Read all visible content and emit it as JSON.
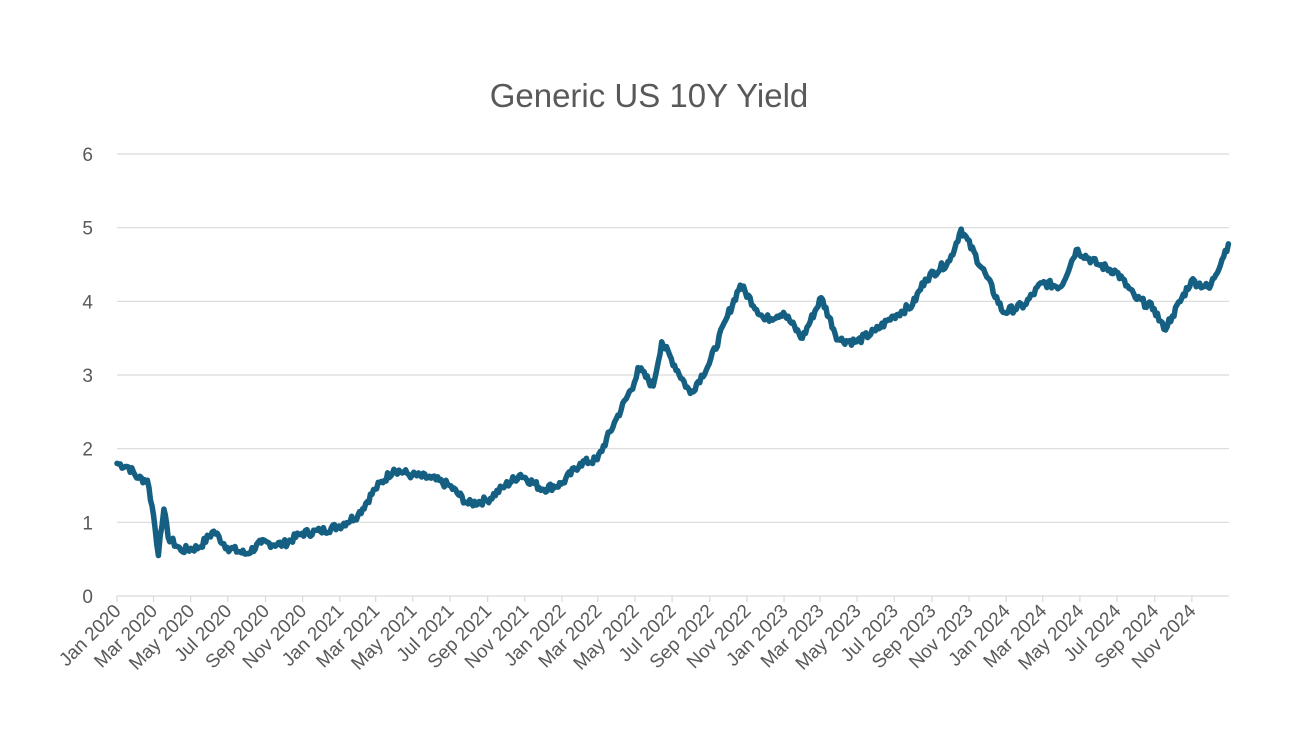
{
  "chart_data": {
    "type": "line",
    "title": "Generic US 10Y Yield",
    "xlabel": "",
    "ylabel": "",
    "ylim": [
      0,
      6
    ],
    "yticks": [
      0,
      1,
      2,
      3,
      4,
      5,
      6
    ],
    "xlim": [
      "2020-01-01",
      "2025-01-01"
    ],
    "x_tick_labels": [
      "Jan 2020",
      "Mar 2020",
      "May 2020",
      "Jul 2020",
      "Sep 2020",
      "Nov 2020",
      "Jan 2021",
      "Mar 2021",
      "May 2021",
      "Jul 2021",
      "Sep 2021",
      "Nov 2021",
      "Jan 2022",
      "Mar 2022",
      "May 2022",
      "Jul 2022",
      "Sep 2022",
      "Nov 2022",
      "Jan 2023",
      "Mar 2023",
      "May 2023",
      "Jul 2023",
      "Sep 2023",
      "Nov 2023",
      "Jan 2024",
      "Mar 2024",
      "May 2024",
      "Jul 2024",
      "Sep 2024",
      "Nov 2024"
    ],
    "grid": true,
    "legend": "none",
    "series": [
      {
        "color": "#156082",
        "x": [
          "2020-01-01",
          "2020-01-20",
          "2020-02-05",
          "2020-02-20",
          "2020-03-01",
          "2020-03-09",
          "2020-03-12",
          "2020-03-18",
          "2020-03-25",
          "2020-04-15",
          "2020-05-15",
          "2020-06-08",
          "2020-06-30",
          "2020-07-31",
          "2020-08-25",
          "2020-09-30",
          "2020-10-31",
          "2020-11-30",
          "2020-12-31",
          "2021-01-31",
          "2021-02-28",
          "2021-03-31",
          "2021-04-30",
          "2021-05-31",
          "2021-06-30",
          "2021-07-31",
          "2021-08-31",
          "2021-09-30",
          "2021-10-25",
          "2021-11-30",
          "2021-12-31",
          "2022-01-31",
          "2022-02-28",
          "2022-03-31",
          "2022-04-30",
          "2022-05-06",
          "2022-05-31",
          "2022-06-14",
          "2022-07-31",
          "2022-08-31",
          "2022-09-30",
          "2022-10-21",
          "2022-11-30",
          "2022-12-31",
          "2023-01-31",
          "2023-03-03",
          "2023-03-31",
          "2023-04-30",
          "2023-05-31",
          "2023-06-30",
          "2023-07-31",
          "2023-08-21",
          "2023-09-30",
          "2023-10-19",
          "2023-11-30",
          "2023-12-27",
          "2024-01-31",
          "2024-02-29",
          "2024-03-31",
          "2024-04-25",
          "2024-05-31",
          "2024-06-30",
          "2024-07-31",
          "2024-08-31",
          "2024-09-16",
          "2024-09-30",
          "2024-10-31",
          "2024-11-30",
          "2024-12-31"
        ],
        "y": [
          1.8,
          1.75,
          1.6,
          1.57,
          1.1,
          0.55,
          0.82,
          1.18,
          0.8,
          0.62,
          0.66,
          0.88,
          0.66,
          0.57,
          0.72,
          0.7,
          0.85,
          0.88,
          0.95,
          1.1,
          1.45,
          1.72,
          1.64,
          1.6,
          1.5,
          1.25,
          1.3,
          1.5,
          1.65,
          1.45,
          1.52,
          1.8,
          1.85,
          2.4,
          2.9,
          3.1,
          2.85,
          3.45,
          2.75,
          3.15,
          3.8,
          4.22,
          3.75,
          3.85,
          3.5,
          4.05,
          3.48,
          3.45,
          3.6,
          3.8,
          3.95,
          4.3,
          4.55,
          4.98,
          4.33,
          3.85,
          3.95,
          4.25,
          4.2,
          4.7,
          4.5,
          4.4,
          4.05,
          3.9,
          3.62,
          3.8,
          4.28,
          4.18,
          4.78
        ]
      }
    ]
  }
}
